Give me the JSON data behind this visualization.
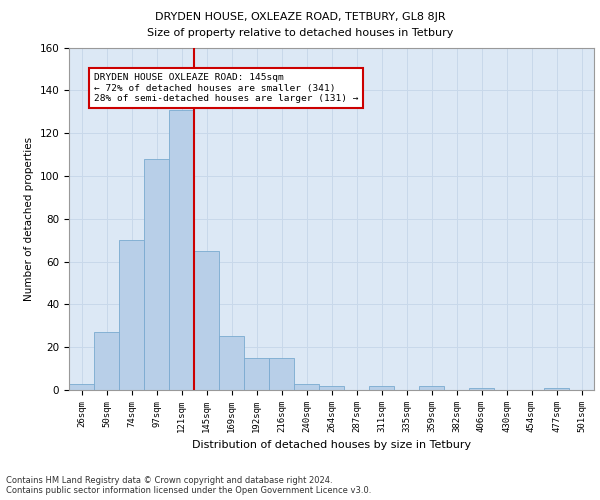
{
  "title1": "DRYDEN HOUSE, OXLEAZE ROAD, TETBURY, GL8 8JR",
  "title2": "Size of property relative to detached houses in Tetbury",
  "xlabel": "Distribution of detached houses by size in Tetbury",
  "ylabel": "Number of detached properties",
  "categories": [
    "26sqm",
    "50sqm",
    "74sqm",
    "97sqm",
    "121sqm",
    "145sqm",
    "169sqm",
    "192sqm",
    "216sqm",
    "240sqm",
    "264sqm",
    "287sqm",
    "311sqm",
    "335sqm",
    "359sqm",
    "382sqm",
    "406sqm",
    "430sqm",
    "454sqm",
    "477sqm",
    "501sqm"
  ],
  "values": [
    3,
    27,
    70,
    108,
    131,
    65,
    25,
    15,
    15,
    3,
    2,
    0,
    2,
    0,
    2,
    0,
    1,
    0,
    0,
    1,
    0
  ],
  "bar_color": "#b8cfe8",
  "bar_edge_color": "#7aaad0",
  "marker_label_line1": "DRYDEN HOUSE OXLEAZE ROAD: 145sqm",
  "marker_label_line2": "← 72% of detached houses are smaller (341)",
  "marker_label_line3": "28% of semi-detached houses are larger (131) →",
  "vline_color": "#cc0000",
  "annotation_box_edge_color": "#cc0000",
  "grid_color": "#c8d8ea",
  "background_color": "#dce8f5",
  "footer": "Contains HM Land Registry data © Crown copyright and database right 2024.\nContains public sector information licensed under the Open Government Licence v3.0.",
  "ylim": [
    0,
    160
  ],
  "yticks": [
    0,
    20,
    40,
    60,
    80,
    100,
    120,
    140,
    160
  ],
  "vline_x_index": 5
}
